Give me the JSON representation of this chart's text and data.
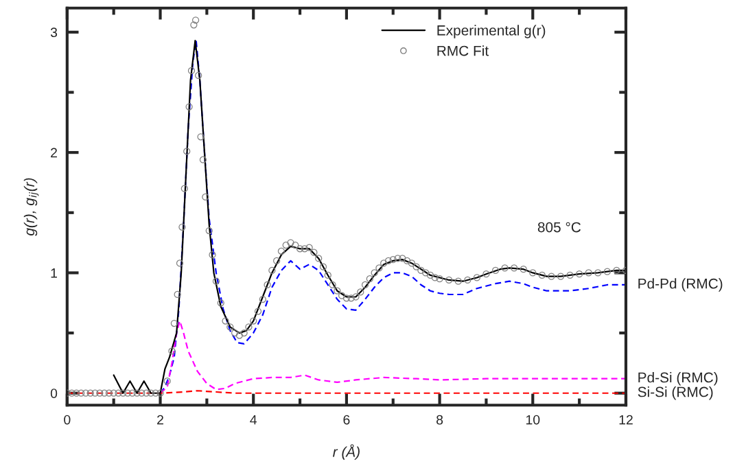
{
  "chart_data": {
    "type": "line",
    "xlabel": "r (Å)",
    "ylabel": "g(r), g$_{ij}$(r)",
    "xlim": [
      0,
      12
    ],
    "ylim": [
      -0.1,
      3.2
    ],
    "xticks": [
      0,
      {
        "value": 1,
        "label": null
      },
      2,
      {
        "value": 3,
        "label": null
      },
      4,
      {
        "value": 5,
        "label": null
      },
      6,
      {
        "value": 7,
        "label": null
      },
      8,
      {
        "value": 9,
        "label": null
      },
      10,
      {
        "value": 11,
        "label": null
      },
      12
    ],
    "yticks": [
      0,
      {
        "value": 0.5,
        "label": null
      },
      1,
      {
        "value": 1.5,
        "label": null
      },
      2,
      {
        "value": 2.5,
        "label": null
      },
      3
    ],
    "grid": false,
    "legend": "top right",
    "annotations": [
      "805 °C"
    ],
    "series": [
      {
        "name": "Pd-Pd (RMC)",
        "color": "#0000ff",
        "line_style": "dashed",
        "x": [
          2.0,
          2.1,
          2.2,
          2.3,
          2.4,
          2.5,
          2.6,
          2.7,
          2.77,
          2.85,
          2.95,
          3.05,
          3.2,
          3.35,
          3.5,
          3.65,
          3.8,
          4.0,
          4.2,
          4.4,
          4.6,
          4.8,
          5.0,
          5.2,
          5.4,
          5.6,
          5.8,
          6.0,
          6.2,
          6.4,
          6.6,
          6.8,
          7.0,
          7.2,
          7.4,
          7.6,
          7.8,
          8.0,
          8.2,
          8.5,
          8.8,
          9.2,
          9.5,
          9.8,
          10.0,
          10.3,
          10.8,
          11.2,
          11.6,
          12.0
        ],
        "values": [
          0.0,
          0.05,
          0.15,
          0.3,
          0.7,
          1.4,
          2.2,
          2.75,
          2.93,
          2.6,
          2.0,
          1.45,
          1.0,
          0.7,
          0.52,
          0.42,
          0.41,
          0.5,
          0.65,
          0.88,
          1.02,
          1.1,
          1.03,
          1.07,
          1.02,
          0.9,
          0.78,
          0.7,
          0.69,
          0.78,
          0.88,
          0.96,
          1.0,
          1.0,
          0.97,
          0.9,
          0.85,
          0.83,
          0.82,
          0.82,
          0.87,
          0.91,
          0.93,
          0.91,
          0.88,
          0.85,
          0.85,
          0.87,
          0.9,
          0.9
        ]
      },
      {
        "name": "Pd-Si (RMC)",
        "color": "#ff00ff",
        "line_style": "dashed",
        "x": [
          2.0,
          2.15,
          2.25,
          2.35,
          2.42,
          2.5,
          2.6,
          2.8,
          3.0,
          3.2,
          3.4,
          3.6,
          3.8,
          4.0,
          4.4,
          4.8,
          5.1,
          5.4,
          5.8,
          6.2,
          6.8,
          7.5,
          8.0,
          9.0,
          10.0,
          11.0,
          12.0
        ],
        "values": [
          0.0,
          0.05,
          0.25,
          0.5,
          0.6,
          0.5,
          0.35,
          0.18,
          0.08,
          0.03,
          0.04,
          0.08,
          0.1,
          0.12,
          0.13,
          0.13,
          0.15,
          0.11,
          0.09,
          0.11,
          0.13,
          0.12,
          0.11,
          0.12,
          0.12,
          0.12,
          0.12
        ]
      },
      {
        "name": "Si-Si (RMC)",
        "color": "#ff0000",
        "line_style": "dashed",
        "x": [
          0.0,
          2.0,
          2.5,
          2.8,
          3.2,
          3.6,
          12.0
        ],
        "values": [
          0.0,
          0.0,
          0.01,
          0.02,
          0.01,
          0.0,
          0.0
        ]
      },
      {
        "name": "Experimental g(r)",
        "color": "#000000",
        "line_style": "solid",
        "x": [
          1.0,
          1.2,
          1.35,
          1.5,
          1.65,
          1.8,
          2.0,
          2.1,
          2.2,
          2.35,
          2.45,
          2.55,
          2.65,
          2.75,
          2.85,
          2.95,
          3.05,
          3.15,
          3.3,
          3.5,
          3.7,
          3.85,
          4.0,
          4.2,
          4.4,
          4.6,
          4.8,
          5.0,
          5.2,
          5.4,
          5.6,
          5.8,
          6.0,
          6.2,
          6.4,
          6.6,
          6.8,
          7.0,
          7.2,
          7.4,
          7.6,
          7.8,
          8.0,
          8.2,
          8.5,
          8.8,
          9.0,
          9.3,
          9.5,
          9.8,
          10.0,
          10.3,
          10.6,
          11.0,
          11.4,
          11.8,
          12.0
        ],
        "values": [
          0.15,
          0.0,
          0.1,
          0.0,
          0.1,
          0.0,
          0.0,
          0.2,
          0.3,
          0.5,
          1.0,
          1.8,
          2.6,
          2.93,
          2.6,
          2.0,
          1.4,
          1.0,
          0.72,
          0.55,
          0.5,
          0.52,
          0.6,
          0.8,
          1.0,
          1.15,
          1.22,
          1.2,
          1.2,
          1.12,
          0.98,
          0.85,
          0.8,
          0.8,
          0.88,
          0.98,
          1.07,
          1.1,
          1.11,
          1.08,
          1.03,
          0.98,
          0.96,
          0.94,
          0.93,
          0.96,
          0.99,
          1.03,
          1.04,
          1.03,
          1.0,
          0.97,
          0.97,
          0.99,
          1.0,
          1.02,
          1.02
        ]
      },
      {
        "type": "scatter",
        "name": "RMC Fit",
        "color": "#808080",
        "marker": "circle",
        "x": [
          0.0,
          0.1,
          0.2,
          0.3,
          0.4,
          0.5,
          0.6,
          0.7,
          0.8,
          0.9,
          1.0,
          1.1,
          1.2,
          1.3,
          1.4,
          1.5,
          1.6,
          1.7,
          1.8,
          1.9,
          2.0,
          2.15,
          2.25,
          2.3,
          2.37,
          2.42,
          2.47,
          2.52,
          2.57,
          2.62,
          2.67,
          2.72,
          2.76,
          2.82,
          2.87,
          2.92,
          2.97,
          3.05,
          3.12,
          3.2,
          3.3,
          3.4,
          3.5,
          3.6,
          3.7,
          3.8,
          3.9,
          4.0,
          4.1,
          4.2,
          4.3,
          4.4,
          4.5,
          4.6,
          4.7,
          4.8,
          4.9,
          5.0,
          5.1,
          5.2,
          5.3,
          5.4,
          5.5,
          5.6,
          5.7,
          5.8,
          5.9,
          6.0,
          6.1,
          6.2,
          6.3,
          6.4,
          6.5,
          6.6,
          6.7,
          6.8,
          6.9,
          7.0,
          7.1,
          7.2,
          7.3,
          7.4,
          7.5,
          7.6,
          7.7,
          7.8,
          7.9,
          8.0,
          8.2,
          8.4,
          8.6,
          8.8,
          9.0,
          9.2,
          9.4,
          9.6,
          9.8,
          10.0,
          10.2,
          10.4,
          10.6,
          10.8,
          11.0,
          11.2,
          11.4,
          11.6,
          11.8,
          12.0
        ],
        "values": [
          0,
          0,
          0,
          0,
          0,
          0,
          0,
          0,
          0,
          0,
          0,
          0,
          0,
          0,
          0,
          0,
          0,
          0,
          0,
          0,
          0,
          0.1,
          0.35,
          0.58,
          0.82,
          1.08,
          1.38,
          1.7,
          2.01,
          2.38,
          2.68,
          3.06,
          3.1,
          2.64,
          2.13,
          1.94,
          1.63,
          1.35,
          1.15,
          0.93,
          0.75,
          0.6,
          0.55,
          0.5,
          0.48,
          0.5,
          0.55,
          0.6,
          0.68,
          0.78,
          0.9,
          1.02,
          1.1,
          1.18,
          1.23,
          1.25,
          1.23,
          1.2,
          1.2,
          1.21,
          1.17,
          1.12,
          1.05,
          0.98,
          0.9,
          0.85,
          0.81,
          0.79,
          0.79,
          0.8,
          0.84,
          0.9,
          0.95,
          1.0,
          1.04,
          1.08,
          1.1,
          1.11,
          1.12,
          1.12,
          1.1,
          1.08,
          1.05,
          1.02,
          1.0,
          0.98,
          0.96,
          0.95,
          0.94,
          0.93,
          0.94,
          0.96,
          0.99,
          1.02,
          1.04,
          1.04,
          1.03,
          1.0,
          0.98,
          0.97,
          0.97,
          0.98,
          0.99,
          1.0,
          1.0,
          1.01,
          1.02,
          1.02
        ]
      }
    ]
  }
}
